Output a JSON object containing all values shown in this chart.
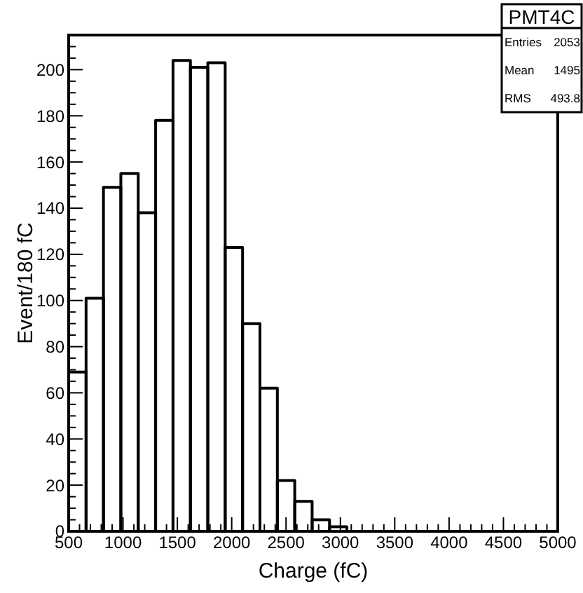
{
  "chart_data": {
    "type": "histogram",
    "title": "PMT4C",
    "xlabel": "Charge (fC)",
    "ylabel": "Event/180 fC",
    "bins": [
      500,
      660,
      820,
      980,
      1140,
      1300,
      1460,
      1620,
      1780,
      1940,
      2100,
      2260,
      2420,
      2580,
      2740,
      2900,
      3060
    ],
    "values": [
      69,
      101,
      149,
      155,
      138,
      178,
      204,
      201,
      203,
      123,
      90,
      62,
      22,
      13,
      5,
      2
    ],
    "color": "#000000",
    "xlim": [
      500,
      5000
    ],
    "xticks": [
      500,
      1000,
      1500,
      2000,
      2500,
      3000,
      3500,
      4000,
      4500,
      5000
    ],
    "ylim": [
      0,
      215
    ],
    "yticks": [
      0,
      20,
      40,
      60,
      80,
      100,
      120,
      140,
      160,
      180,
      200
    ],
    "annotations": [
      "Entries 2053",
      "Mean 1495",
      "RMS 493.8"
    ],
    "grid": false
  }
}
